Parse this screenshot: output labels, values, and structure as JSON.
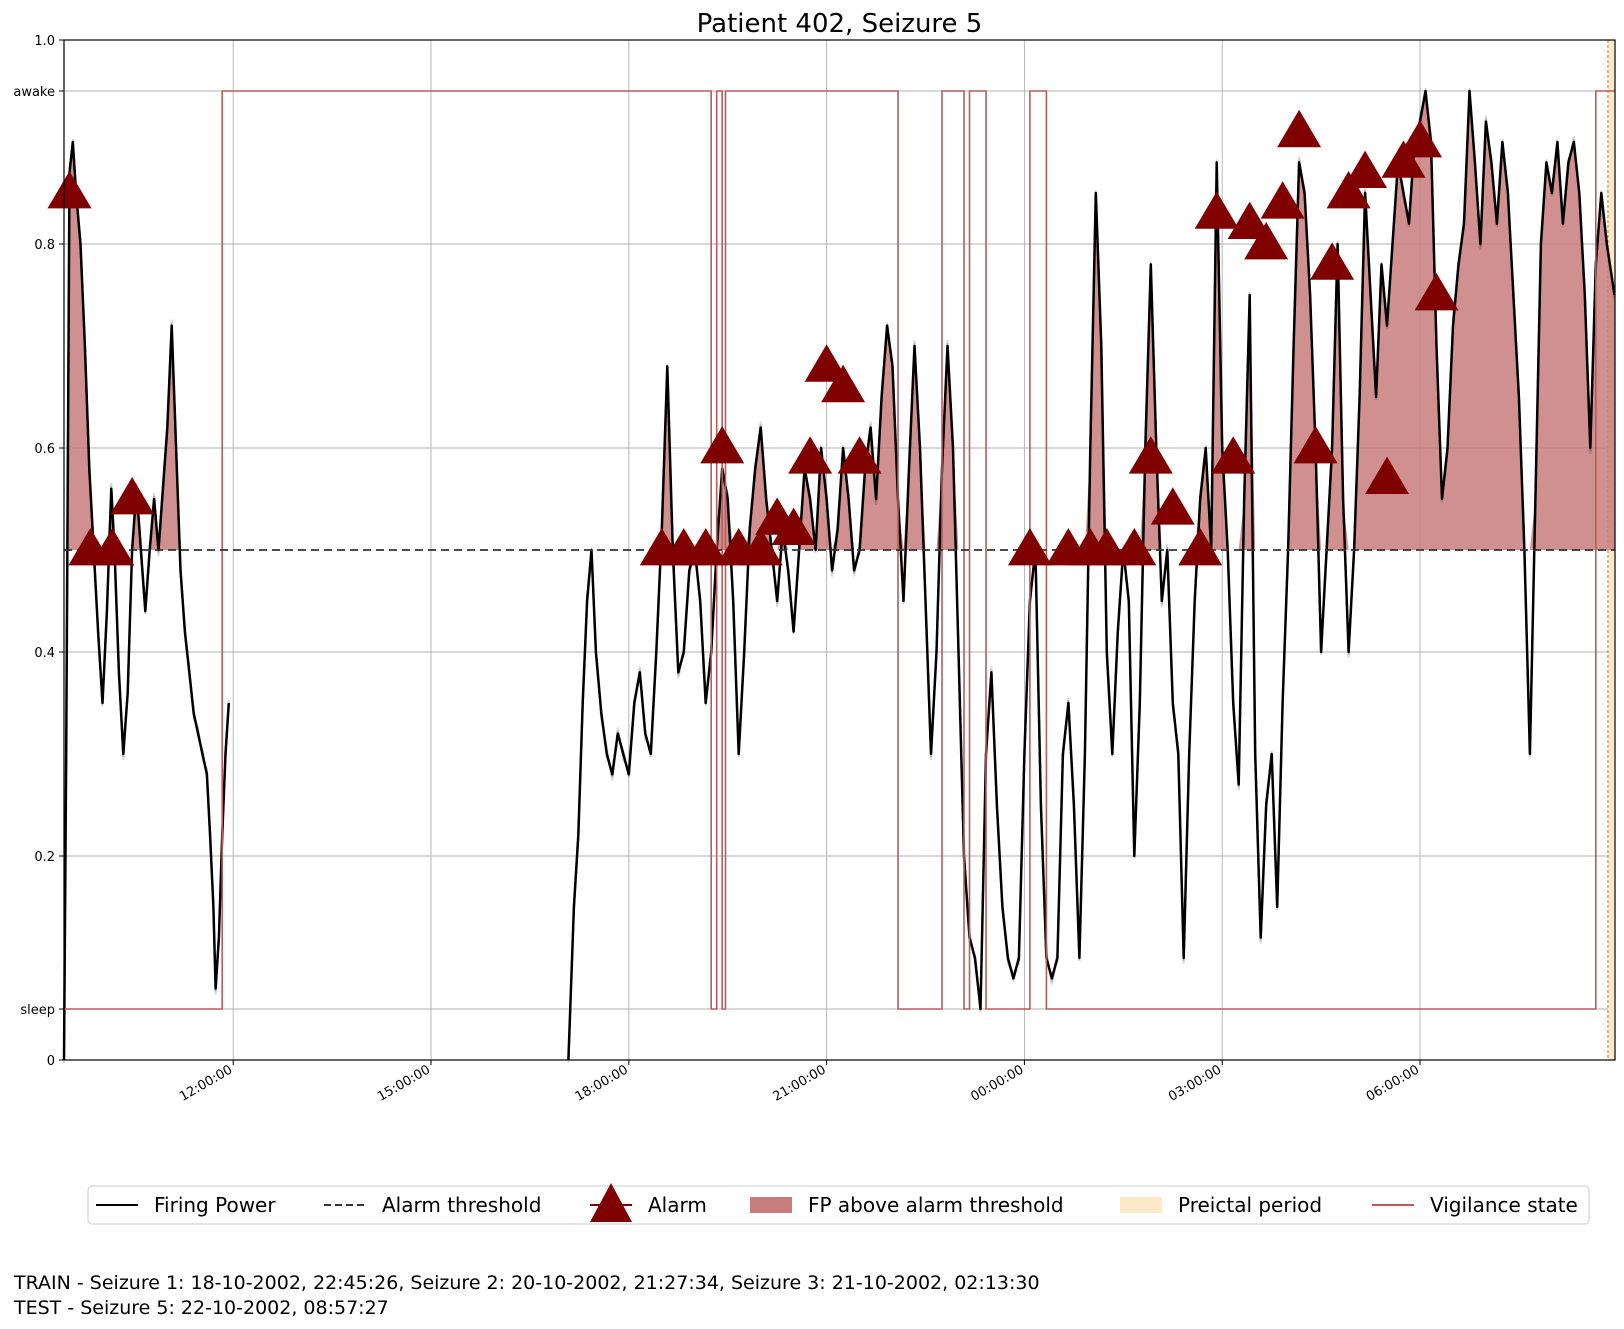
{
  "chart_data": {
    "type": "line",
    "title": "Patient 402, Seizure 5",
    "xlabel": "",
    "ylabel": "",
    "x_start": "2002-10-21T09:26:00",
    "x_end": "2002-10-22T08:57:27",
    "xticks": [
      {
        "time": "2002-10-21T12:00:00",
        "label": "12:00:00"
      },
      {
        "time": "2002-10-21T15:00:00",
        "label": "15:00:00"
      },
      {
        "time": "2002-10-21T18:00:00",
        "label": "18:00:00"
      },
      {
        "time": "2002-10-21T21:00:00",
        "label": "21:00:00"
      },
      {
        "time": "2002-10-22T00:00:00",
        "label": "00:00:00"
      },
      {
        "time": "2002-10-22T03:00:00",
        "label": "03:00:00"
      },
      {
        "time": "2002-10-22T06:00:00",
        "label": "06:00:00"
      }
    ],
    "ylim": [
      0,
      1.0
    ],
    "yticks": [
      {
        "value": 0,
        "label": "0"
      },
      {
        "value": 0.05,
        "label": "sleep"
      },
      {
        "value": 0.2,
        "label": "0.2"
      },
      {
        "value": 0.4,
        "label": "0.4"
      },
      {
        "value": 0.6,
        "label": "0.6"
      },
      {
        "value": 0.8,
        "label": "0.8"
      },
      {
        "value": 0.95,
        "label": "awake"
      },
      {
        "value": 1.0,
        "label": "1.0"
      }
    ],
    "grid": true,
    "alarm_threshold": 0.5,
    "firing_power_segments": [
      [
        [
          "09:26",
          0.0
        ],
        [
          "09:28",
          0.3
        ],
        [
          "09:31",
          0.87
        ],
        [
          "09:34",
          0.9
        ],
        [
          "09:37",
          0.85
        ],
        [
          "09:41",
          0.8
        ],
        [
          "09:45",
          0.7
        ],
        [
          "09:49",
          0.58
        ],
        [
          "09:53",
          0.5
        ],
        [
          "09:57",
          0.42
        ],
        [
          "10:01",
          0.35
        ],
        [
          "10:05",
          0.44
        ],
        [
          "10:09",
          0.56
        ],
        [
          "10:12",
          0.5
        ],
        [
          "10:16",
          0.38
        ],
        [
          "10:20",
          0.3
        ],
        [
          "10:24",
          0.36
        ],
        [
          "10:28",
          0.5
        ],
        [
          "10:32",
          0.56
        ],
        [
          "10:36",
          0.5
        ],
        [
          "10:40",
          0.44
        ],
        [
          "10:44",
          0.5
        ],
        [
          "10:48",
          0.55
        ],
        [
          "10:52",
          0.5
        ],
        [
          "10:56",
          0.56
        ],
        [
          "11:00",
          0.62
        ],
        [
          "11:04",
          0.72
        ],
        [
          "11:08",
          0.6
        ],
        [
          "11:12",
          0.48
        ],
        [
          "11:16",
          0.42
        ],
        [
          "11:20",
          0.38
        ],
        [
          "11:24",
          0.34
        ],
        [
          "11:28",
          0.32
        ],
        [
          "11:32",
          0.3
        ],
        [
          "11:36",
          0.28
        ],
        [
          "11:39",
          0.22
        ],
        [
          "11:42",
          0.15
        ],
        [
          "11:44",
          0.07
        ],
        [
          "11:47",
          0.12
        ],
        [
          "11:50",
          0.22
        ],
        [
          "11:53",
          0.3
        ],
        [
          "11:56",
          0.35
        ]
      ],
      [
        [
          "17:05",
          0.0
        ],
        [
          "17:10",
          0.15
        ],
        [
          "17:14",
          0.22
        ],
        [
          "17:18",
          0.35
        ],
        [
          "17:22",
          0.45
        ],
        [
          "17:26",
          0.5
        ],
        [
          "17:30",
          0.4
        ],
        [
          "17:35",
          0.34
        ],
        [
          "17:40",
          0.3
        ],
        [
          "17:45",
          0.28
        ],
        [
          "17:50",
          0.32
        ],
        [
          "17:55",
          0.3
        ],
        [
          "18:00",
          0.28
        ],
        [
          "18:05",
          0.35
        ],
        [
          "18:10",
          0.38
        ],
        [
          "18:15",
          0.32
        ],
        [
          "18:20",
          0.3
        ],
        [
          "18:25",
          0.4
        ],
        [
          "18:30",
          0.52
        ],
        [
          "18:35",
          0.68
        ],
        [
          "18:40",
          0.5
        ],
        [
          "18:45",
          0.38
        ],
        [
          "18:50",
          0.4
        ],
        [
          "18:55",
          0.48
        ],
        [
          "19:00",
          0.5
        ],
        [
          "19:05",
          0.45
        ],
        [
          "19:10",
          0.35
        ],
        [
          "19:15",
          0.4
        ],
        [
          "19:20",
          0.5
        ],
        [
          "19:25",
          0.58
        ],
        [
          "19:30",
          0.55
        ],
        [
          "19:35",
          0.45
        ],
        [
          "19:40",
          0.3
        ],
        [
          "19:45",
          0.4
        ],
        [
          "19:50",
          0.52
        ],
        [
          "19:55",
          0.58
        ],
        [
          "20:00",
          0.62
        ],
        [
          "20:05",
          0.55
        ],
        [
          "20:10",
          0.5
        ],
        [
          "20:15",
          0.45
        ],
        [
          "20:20",
          0.52
        ],
        [
          "20:25",
          0.48
        ],
        [
          "20:30",
          0.42
        ],
        [
          "20:35",
          0.5
        ],
        [
          "20:40",
          0.58
        ],
        [
          "20:45",
          0.55
        ],
        [
          "20:50",
          0.5
        ],
        [
          "20:55",
          0.6
        ],
        [
          "21:00",
          0.55
        ],
        [
          "21:05",
          0.48
        ],
        [
          "21:10",
          0.52
        ],
        [
          "21:15",
          0.6
        ],
        [
          "21:20",
          0.55
        ],
        [
          "21:25",
          0.48
        ],
        [
          "21:30",
          0.5
        ],
        [
          "21:35",
          0.58
        ],
        [
          "21:40",
          0.62
        ],
        [
          "21:45",
          0.55
        ],
        [
          "21:50",
          0.65
        ],
        [
          "21:55",
          0.72
        ],
        [
          "22:00",
          0.68
        ],
        [
          "22:05",
          0.55
        ],
        [
          "22:10",
          0.45
        ],
        [
          "22:15",
          0.58
        ],
        [
          "22:20",
          0.7
        ],
        [
          "22:25",
          0.6
        ],
        [
          "22:30",
          0.45
        ],
        [
          "22:35",
          0.3
        ],
        [
          "22:40",
          0.4
        ],
        [
          "22:45",
          0.58
        ],
        [
          "22:50",
          0.7
        ],
        [
          "22:55",
          0.6
        ],
        [
          "23:00",
          0.4
        ],
        [
          "23:05",
          0.2
        ],
        [
          "23:10",
          0.12
        ],
        [
          "23:15",
          0.1
        ],
        [
          "23:20",
          0.05
        ],
        [
          "23:25",
          0.3
        ],
        [
          "23:30",
          0.38
        ],
        [
          "23:35",
          0.25
        ],
        [
          "23:40",
          0.15
        ],
        [
          "23:45",
          0.1
        ],
        [
          "23:50",
          0.08
        ],
        [
          "23:55",
          0.1
        ],
        [
          "00:00",
          0.3
        ],
        [
          "00:05",
          0.45
        ],
        [
          "00:10",
          0.5
        ],
        [
          "00:15",
          0.25
        ],
        [
          "00:20",
          0.1
        ],
        [
          "00:25",
          0.08
        ],
        [
          "00:30",
          0.1
        ],
        [
          "00:35",
          0.3
        ],
        [
          "00:40",
          0.35
        ],
        [
          "00:45",
          0.25
        ],
        [
          "00:50",
          0.1
        ],
        [
          "00:55",
          0.3
        ],
        [
          "01:00",
          0.6
        ],
        [
          "01:05",
          0.85
        ],
        [
          "01:10",
          0.7
        ],
        [
          "01:15",
          0.4
        ],
        [
          "01:20",
          0.3
        ],
        [
          "01:25",
          0.42
        ],
        [
          "01:30",
          0.5
        ],
        [
          "01:35",
          0.45
        ],
        [
          "01:40",
          0.2
        ],
        [
          "01:45",
          0.35
        ],
        [
          "01:50",
          0.6
        ],
        [
          "01:55",
          0.78
        ],
        [
          "02:00",
          0.6
        ],
        [
          "02:05",
          0.45
        ],
        [
          "02:10",
          0.5
        ],
        [
          "02:15",
          0.35
        ],
        [
          "02:20",
          0.3
        ],
        [
          "02:25",
          0.1
        ],
        [
          "02:30",
          0.3
        ],
        [
          "02:35",
          0.45
        ],
        [
          "02:40",
          0.55
        ],
        [
          "02:45",
          0.6
        ],
        [
          "02:50",
          0.5
        ],
        [
          "02:55",
          0.88
        ],
        [
          "03:00",
          0.6
        ],
        [
          "03:05",
          0.5
        ],
        [
          "03:10",
          0.35
        ],
        [
          "03:15",
          0.27
        ],
        [
          "03:20",
          0.55
        ],
        [
          "03:25",
          0.75
        ],
        [
          "03:30",
          0.3
        ],
        [
          "03:35",
          0.12
        ],
        [
          "03:40",
          0.25
        ],
        [
          "03:45",
          0.3
        ],
        [
          "03:50",
          0.15
        ],
        [
          "03:55",
          0.35
        ],
        [
          "04:00",
          0.5
        ],
        [
          "04:05",
          0.7
        ],
        [
          "04:10",
          0.88
        ],
        [
          "04:15",
          0.85
        ],
        [
          "04:20",
          0.75
        ],
        [
          "04:25",
          0.6
        ],
        [
          "04:30",
          0.4
        ],
        [
          "04:35",
          0.5
        ],
        [
          "04:40",
          0.6
        ],
        [
          "04:45",
          0.8
        ],
        [
          "04:50",
          0.55
        ],
        [
          "04:55",
          0.4
        ],
        [
          "05:00",
          0.5
        ],
        [
          "05:05",
          0.65
        ],
        [
          "05:10",
          0.85
        ],
        [
          "05:15",
          0.75
        ],
        [
          "05:20",
          0.65
        ],
        [
          "05:25",
          0.78
        ],
        [
          "05:30",
          0.72
        ],
        [
          "05:35",
          0.8
        ],
        [
          "05:40",
          0.88
        ],
        [
          "05:45",
          0.85
        ],
        [
          "05:50",
          0.82
        ],
        [
          "05:55",
          0.9
        ],
        [
          "06:00",
          0.92
        ],
        [
          "06:05",
          0.95
        ],
        [
          "06:10",
          0.9
        ],
        [
          "06:15",
          0.7
        ],
        [
          "06:20",
          0.55
        ],
        [
          "06:25",
          0.6
        ],
        [
          "06:30",
          0.72
        ],
        [
          "06:35",
          0.78
        ],
        [
          "06:40",
          0.82
        ],
        [
          "06:45",
          0.95
        ],
        [
          "06:50",
          0.88
        ],
        [
          "06:55",
          0.8
        ],
        [
          "07:00",
          0.92
        ],
        [
          "07:05",
          0.88
        ],
        [
          "07:10",
          0.82
        ],
        [
          "07:15",
          0.9
        ],
        [
          "07:20",
          0.85
        ],
        [
          "07:25",
          0.75
        ],
        [
          "07:30",
          0.65
        ],
        [
          "07:35",
          0.5
        ],
        [
          "07:40",
          0.3
        ],
        [
          "07:45",
          0.55
        ],
        [
          "07:50",
          0.8
        ],
        [
          "07:55",
          0.88
        ],
        [
          "08:00",
          0.85
        ],
        [
          "08:05",
          0.9
        ],
        [
          "08:10",
          0.82
        ],
        [
          "08:15",
          0.88
        ],
        [
          "08:20",
          0.9
        ],
        [
          "08:25",
          0.85
        ],
        [
          "08:30",
          0.75
        ],
        [
          "08:35",
          0.6
        ],
        [
          "08:40",
          0.78
        ],
        [
          "08:45",
          0.85
        ],
        [
          "08:50",
          0.8
        ],
        [
          "08:57",
          0.75
        ]
      ]
    ],
    "alarms": [
      [
        "09:31",
        0.85
      ],
      [
        "09:50",
        0.5
      ],
      [
        "10:10",
        0.5
      ],
      [
        "10:28",
        0.55
      ],
      [
        "18:30",
        0.5
      ],
      [
        "18:50",
        0.5
      ],
      [
        "19:10",
        0.5
      ],
      [
        "19:25",
        0.6
      ],
      [
        "19:40",
        0.5
      ],
      [
        "20:00",
        0.5
      ],
      [
        "20:15",
        0.53
      ],
      [
        "20:30",
        0.52
      ],
      [
        "20:45",
        0.59
      ],
      [
        "21:00",
        0.68
      ],
      [
        "21:15",
        0.66
      ],
      [
        "21:30",
        0.59
      ],
      [
        "00:05",
        0.5
      ],
      [
        "00:40",
        0.5
      ],
      [
        "01:00",
        0.5
      ],
      [
        "01:15",
        0.5
      ],
      [
        "01:40",
        0.5
      ],
      [
        "01:55",
        0.59
      ],
      [
        "02:15",
        0.54
      ],
      [
        "02:40",
        0.5
      ],
      [
        "02:55",
        0.83
      ],
      [
        "03:10",
        0.59
      ],
      [
        "03:25",
        0.82
      ],
      [
        "03:40",
        0.8
      ],
      [
        "03:55",
        0.84
      ],
      [
        "04:10",
        0.91
      ],
      [
        "04:25",
        0.6
      ],
      [
        "04:40",
        0.78
      ],
      [
        "04:55",
        0.85
      ],
      [
        "05:10",
        0.87
      ],
      [
        "05:30",
        0.57
      ],
      [
        "05:45",
        0.88
      ],
      [
        "06:00",
        0.9
      ],
      [
        "06:15",
        0.75
      ]
    ],
    "preictal_period": [
      "2002-10-22T08:51:00",
      "2002-10-22T08:57:27"
    ],
    "vigilance_state": [
      [
        "09:26",
        "sleep"
      ],
      [
        "11:50",
        "awake"
      ],
      [
        "19:15",
        "sleep"
      ],
      [
        "19:20",
        "awake"
      ],
      [
        "19:25",
        "sleep"
      ],
      [
        "19:28",
        "awake"
      ],
      [
        "22:05",
        "sleep"
      ],
      [
        "22:45",
        "awake"
      ],
      [
        "23:05",
        "sleep"
      ],
      [
        "23:10",
        "awake"
      ],
      [
        "23:25",
        "sleep"
      ],
      [
        "00:05",
        "awake"
      ],
      [
        "00:20",
        "sleep"
      ],
      [
        "08:40",
        "awake"
      ],
      [
        "08:57",
        "awake"
      ]
    ],
    "legend": [
      {
        "name": "Firing Power"
      },
      {
        "name": "Alarm threshold"
      },
      {
        "name": "Alarm"
      },
      {
        "name": "FP above alarm threshold"
      },
      {
        "name": "Preictal period"
      },
      {
        "name": "Vigilance state"
      }
    ],
    "legend_placement": "bottom-center",
    "colors": {
      "firing_power": "#000000",
      "alarm": "#800000",
      "fp_fill": "#c87d7d",
      "preictal": "#fde9c9",
      "vigilance": "#b85c5c",
      "threshold": "#333333",
      "grid": "#b0b0b0"
    }
  },
  "captions": {
    "line1": "TRAIN - Seizure 1: 18-10-2002, 22:45:26, Seizure 2: 20-10-2002, 21:27:34, Seizure 3: 21-10-2002, 02:13:30",
    "line2": "TEST - Seizure 5: 22-10-2002, 08:57:27"
  }
}
